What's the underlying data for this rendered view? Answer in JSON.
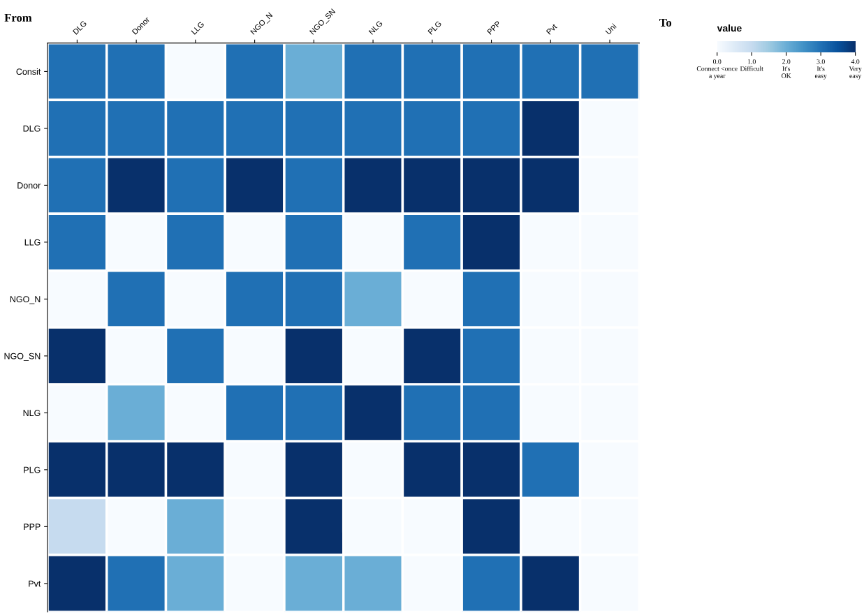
{
  "chart_data": {
    "type": "heatmap",
    "xlabel": "To",
    "ylabel": "From",
    "clabel": "value",
    "categories": [
      "DLG",
      "Donor",
      "LLG",
      "NGO_N",
      "NGO_SN",
      "NLG",
      "PLG",
      "PPP",
      "Pvt",
      "Uni"
    ],
    "y_categories": [
      "Consit",
      "DLG",
      "Donor",
      "LLG",
      "NGO_N",
      "NGO_SN",
      "NLG",
      "PLG",
      "PPP",
      "Pvt"
    ],
    "cells": [
      [
        3,
        3,
        0,
        3,
        2,
        3,
        3,
        3,
        3,
        3
      ],
      [
        3,
        3,
        3,
        3,
        3,
        3,
        3,
        3,
        4,
        0
      ],
      [
        3,
        4,
        3,
        4,
        3,
        4,
        4,
        4,
        4,
        0
      ],
      [
        3,
        0,
        3,
        0,
        3,
        0,
        3,
        4,
        0,
        0
      ],
      [
        0,
        3,
        0,
        3,
        3,
        2,
        0,
        3,
        0,
        0
      ],
      [
        4,
        0,
        3,
        0,
        4,
        0,
        4,
        3,
        0,
        0
      ],
      [
        0,
        2,
        0,
        3,
        3,
        4,
        3,
        3,
        0,
        0
      ],
      [
        4,
        4,
        4,
        0,
        4,
        0,
        4,
        4,
        3,
        0
      ],
      [
        1,
        0,
        2,
        0,
        4,
        0,
        0,
        4,
        0,
        0
      ],
      [
        4,
        3,
        2,
        0,
        2,
        2,
        0,
        3,
        4,
        0
      ]
    ],
    "clim": [
      0,
      4
    ],
    "cticks": [
      {
        "value": 0,
        "label": "0.0\nConnect <once\na year"
      },
      {
        "value": 1,
        "label": "1.0\nDifficult"
      },
      {
        "value": 2,
        "label": "2.0\nIt's\nOK"
      },
      {
        "value": 3,
        "label": "3.0\nIt's\neasy"
      },
      {
        "value": 4,
        "label": "4.0\nVery\neasy"
      }
    ]
  }
}
